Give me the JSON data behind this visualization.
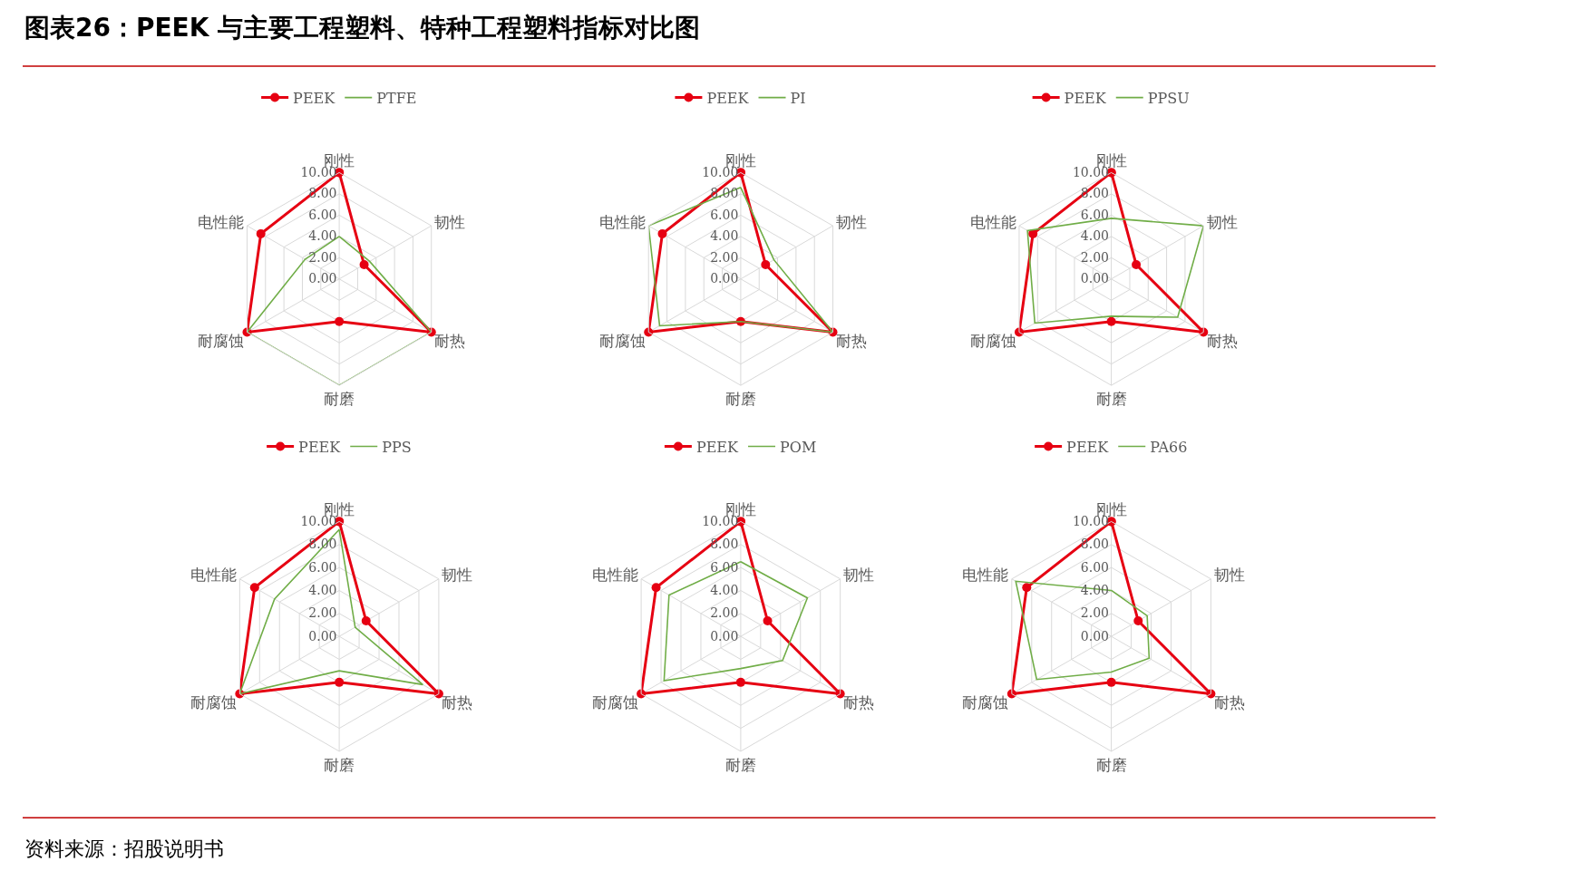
{
  "chart_data": [
    {
      "type": "radar",
      "title": "图表26：PEEK 与主要工程塑料、特种工程塑料指标对比图",
      "categories": [
        "刚性",
        "韧性",
        "耐热",
        "耐磨",
        "耐腐蚀",
        "电性能"
      ],
      "ylim": [
        0,
        10
      ],
      "yticks": [
        {
          "value": 0,
          "label": "0.00"
        },
        {
          "value": 2,
          "label": "2.00"
        },
        {
          "value": 4,
          "label": "4.00"
        },
        {
          "value": 6,
          "label": "6.00"
        },
        {
          "value": 8,
          "label": "8.00"
        },
        {
          "value": 10,
          "label": "10.00"
        }
      ],
      "grid": true,
      "legend": "top",
      "series": [
        {
          "name": "PEEK",
          "color": "#e60012",
          "marker": "circle",
          "values": [
            10,
            2.7,
            10,
            4,
            10,
            8.5
          ]
        },
        {
          "name": "PTFE",
          "color": "#70ad47",
          "marker": "none",
          "values": [
            4,
            3.3,
            10,
            10,
            10,
            3.7
          ]
        }
      ]
    },
    {
      "type": "radar",
      "categories": [
        "刚性",
        "韧性",
        "耐热",
        "耐磨",
        "耐腐蚀",
        "电性能"
      ],
      "ylim": [
        0,
        10
      ],
      "yticks": [
        {
          "value": 0,
          "label": "0.00"
        },
        {
          "value": 2,
          "label": "2.00"
        },
        {
          "value": 4,
          "label": "4.00"
        },
        {
          "value": 6,
          "label": "6.00"
        },
        {
          "value": 8,
          "label": "8.00"
        },
        {
          "value": 10,
          "label": "10.00"
        }
      ],
      "grid": true,
      "legend": "top",
      "series": [
        {
          "name": "PEEK",
          "color": "#e60012",
          "marker": "circle",
          "values": [
            10,
            2.7,
            10,
            4,
            10,
            8.5
          ]
        },
        {
          "name": "PI",
          "color": "#70ad47",
          "marker": "none",
          "values": [
            8.6,
            3.6,
            10,
            4,
            8.8,
            10
          ]
        }
      ]
    },
    {
      "type": "radar",
      "categories": [
        "刚性",
        "韧性",
        "耐热",
        "耐磨",
        "耐腐蚀",
        "电性能"
      ],
      "ylim": [
        0,
        10
      ],
      "yticks": [
        {
          "value": 0,
          "label": "0.00"
        },
        {
          "value": 2,
          "label": "2.00"
        },
        {
          "value": 4,
          "label": "4.00"
        },
        {
          "value": 6,
          "label": "6.00"
        },
        {
          "value": 8,
          "label": "8.00"
        },
        {
          "value": 10,
          "label": "10.00"
        }
      ],
      "grid": true,
      "legend": "top",
      "series": [
        {
          "name": "PEEK",
          "color": "#e60012",
          "marker": "circle",
          "values": [
            10,
            2.7,
            10,
            4,
            10,
            8.5
          ]
        },
        {
          "name": "PPSU",
          "color": "#70ad47",
          "marker": "none",
          "values": [
            5.7,
            10,
            7.2,
            3.5,
            8.3,
            9.1
          ]
        }
      ]
    },
    {
      "type": "radar",
      "categories": [
        "刚性",
        "韧性",
        "耐热",
        "耐磨",
        "耐腐蚀",
        "电性能"
      ],
      "ylim": [
        0,
        10
      ],
      "yticks": [
        {
          "value": 0,
          "label": "0.00"
        },
        {
          "value": 2,
          "label": "2.00"
        },
        {
          "value": 4,
          "label": "4.00"
        },
        {
          "value": 6,
          "label": "6.00"
        },
        {
          "value": 8,
          "label": "8.00"
        },
        {
          "value": 10,
          "label": "10.00"
        }
      ],
      "grid": true,
      "legend": "top",
      "series": [
        {
          "name": "PEEK",
          "color": "#e60012",
          "marker": "circle",
          "values": [
            10,
            2.7,
            10,
            4,
            10,
            8.5
          ]
        },
        {
          "name": "PPS",
          "color": "#70ad47",
          "marker": "none",
          "values": [
            9.3,
            1.6,
            8.4,
            3,
            10,
            6.5
          ]
        }
      ]
    },
    {
      "type": "radar",
      "categories": [
        "刚性",
        "韧性",
        "耐热",
        "耐磨",
        "耐腐蚀",
        "电性能"
      ],
      "ylim": [
        0,
        10
      ],
      "yticks": [
        {
          "value": 0,
          "label": "0.00"
        },
        {
          "value": 2,
          "label": "2.00"
        },
        {
          "value": 4,
          "label": "4.00"
        },
        {
          "value": 6,
          "label": "6.00"
        },
        {
          "value": 8,
          "label": "8.00"
        },
        {
          "value": 10,
          "label": "10.00"
        }
      ],
      "grid": true,
      "legend": "top",
      "series": [
        {
          "name": "PEEK",
          "color": "#e60012",
          "marker": "circle",
          "values": [
            10,
            2.7,
            10,
            4,
            10,
            8.5
          ]
        },
        {
          "name": "POM",
          "color": "#70ad47",
          "marker": "none",
          "values": [
            6.5,
            6.7,
            4.2,
            2.8,
            7.7,
            7.2
          ]
        }
      ]
    },
    {
      "type": "radar",
      "categories": [
        "刚性",
        "韧性",
        "耐热",
        "耐磨",
        "耐腐蚀",
        "电性能"
      ],
      "ylim": [
        0,
        10
      ],
      "yticks": [
        {
          "value": 0,
          "label": "0.00"
        },
        {
          "value": 2,
          "label": "2.00"
        },
        {
          "value": 4,
          "label": "4.00"
        },
        {
          "value": 6,
          "label": "6.00"
        },
        {
          "value": 8,
          "label": "8.00"
        },
        {
          "value": 10,
          "label": "10.00"
        }
      ],
      "grid": true,
      "legend": "top",
      "annotations": [
        "资料来源：招股说明书"
      ],
      "series": [
        {
          "name": "PEEK",
          "color": "#e60012",
          "marker": "circle",
          "values": [
            10,
            2.7,
            10,
            4,
            10,
            8.5
          ]
        },
        {
          "name": "PA66",
          "color": "#70ad47",
          "marker": "none",
          "values": [
            4,
            3.6,
            3.8,
            3.1,
            7.5,
            9.6
          ]
        }
      ]
    }
  ]
}
